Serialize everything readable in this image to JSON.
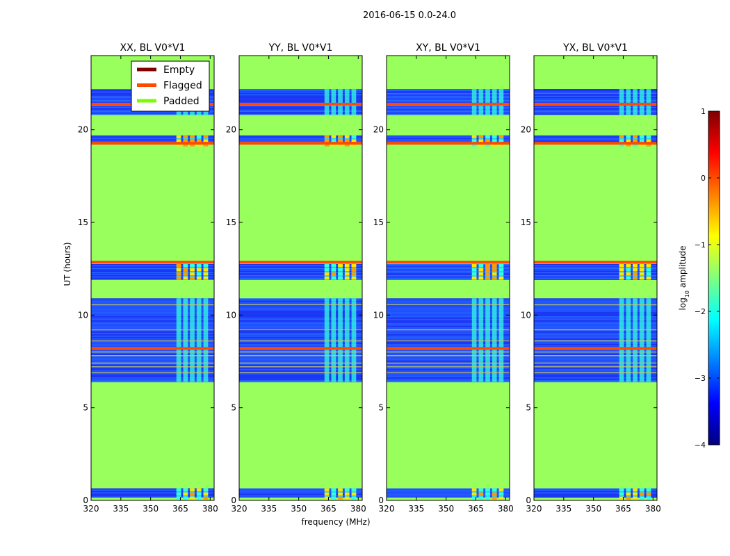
{
  "figure_title": "2016-06-15 0.0-24.0",
  "colors": {
    "padded": "#99ff5c",
    "flagged": "#ff4a00",
    "empty": "#800000",
    "data_low": "#1e3cff",
    "data_mid": "#2a9bff",
    "cyan": "#33ffe0",
    "yellow": "#ffe600",
    "orange": "#ff9a00"
  },
  "chart_data": [
    {
      "type": "heatmap",
      "title": "XX, BL V0*V1",
      "xlabel": "",
      "ylabel": "UT (hours)",
      "xlim": [
        320,
        382
      ],
      "ylim": [
        0,
        24
      ],
      "xticks": [
        320,
        335,
        350,
        365,
        380
      ],
      "yticks": [
        0,
        5,
        10,
        15,
        20
      ],
      "rfi_band_mhz": [
        363,
        380
      ],
      "legend": {
        "location": "top-right",
        "entries": [
          "Empty",
          "Flagged",
          "Padded"
        ]
      }
    },
    {
      "type": "heatmap",
      "title": "YY, BL V0*V1",
      "xlabel": "frequency (MHz)",
      "ylabel": "",
      "xlim": [
        320,
        382
      ],
      "ylim": [
        0,
        24
      ],
      "xticks": [
        320,
        335,
        350,
        365,
        380
      ],
      "yticks": [
        0,
        5,
        10,
        15,
        20
      ],
      "rfi_band_mhz": [
        363,
        380
      ]
    },
    {
      "type": "heatmap",
      "title": "XY, BL V0*V1",
      "xlabel": "",
      "ylabel": "",
      "xlim": [
        320,
        382
      ],
      "ylim": [
        0,
        24
      ],
      "xticks": [
        320,
        335,
        350,
        365,
        380
      ],
      "yticks": [
        0,
        5,
        10,
        15,
        20
      ],
      "rfi_band_mhz": [
        363,
        380
      ]
    },
    {
      "type": "heatmap",
      "title": "YX, BL V0*V1",
      "xlabel": "",
      "ylabel": "",
      "xlim": [
        320,
        382
      ],
      "ylim": [
        0,
        24
      ],
      "xticks": [
        320,
        335,
        350,
        365,
        380
      ],
      "yticks": [
        0,
        5,
        10,
        15,
        20
      ],
      "rfi_band_mhz": [
        363,
        380
      ]
    }
  ],
  "time_segments": {
    "data_blocks_hours": [
      [
        0.15,
        0.65
      ],
      [
        6.4,
        10.9
      ],
      [
        11.9,
        12.75
      ],
      [
        19.2,
        19.7
      ],
      [
        20.8,
        21.3
      ],
      [
        21.45,
        22.2
      ]
    ],
    "padded_blocks_hours": [
      [
        0.0,
        0.15
      ],
      [
        0.65,
        6.4
      ],
      [
        10.9,
        11.9
      ],
      [
        12.9,
        19.2
      ],
      [
        19.7,
        20.8
      ],
      [
        22.2,
        24.0
      ]
    ],
    "flagged_lines_hours": [
      12.85,
      19.27,
      21.38,
      8.2
    ],
    "bright_rows_hours": [
      6.9,
      7.2,
      7.4,
      7.8,
      8.0,
      10.55,
      8.6,
      9.2
    ]
  },
  "legend": {
    "entries": [
      {
        "label": "Empty",
        "color": "#800000"
      },
      {
        "label": "Flagged",
        "color": "#ff4a00"
      },
      {
        "label": "Padded",
        "color": "#7cfc00"
      }
    ]
  },
  "colorbar": {
    "label_prefix": "log",
    "label_subscript": "10",
    "label_suffix": " amplitude",
    "range": [
      -4,
      1
    ],
    "ticks": [
      "1",
      "0",
      "−1",
      "−2",
      "−3",
      "−4"
    ],
    "stops": [
      "#00007f",
      "#0000ff",
      "#007fff",
      "#00ffff",
      "#7fff7f",
      "#ffff00",
      "#ff7f00",
      "#ff0000",
      "#7f0000"
    ]
  }
}
